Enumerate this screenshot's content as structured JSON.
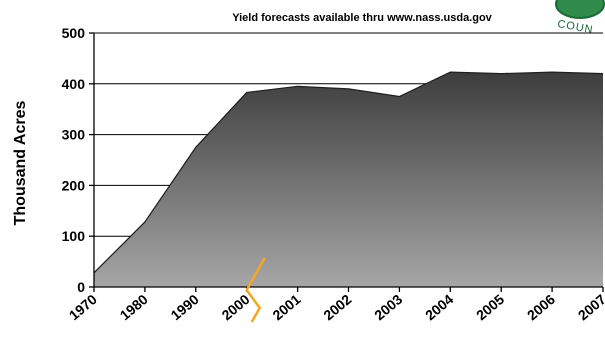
{
  "chart_data": {
    "type": "area",
    "annotation": "Yield forecasts available thru www.nass.usda.gov",
    "ylabel": "Thousand Acres",
    "ylim": [
      0,
      500
    ],
    "yticks": [
      0,
      100,
      200,
      300,
      400,
      500
    ],
    "categories": [
      "1970",
      "1980",
      "1990",
      "2000",
      "2001",
      "2002",
      "2003",
      "2004",
      "2005",
      "2006",
      "2007"
    ],
    "values": [
      28,
      128,
      275,
      383,
      395,
      390,
      375,
      423,
      420,
      423,
      420
    ],
    "grid": true,
    "axis_break_between": [
      "2000",
      "2001"
    ],
    "colors": {
      "area_top": "#3d3d3d",
      "area_bottom": "#a6a6a6",
      "break_line": "#f5a623",
      "grid": "#000000"
    }
  },
  "logo": {
    "text": "COUN",
    "colors": {
      "ring": "#1a6b3a",
      "fill": "#2e8b4a"
    }
  }
}
